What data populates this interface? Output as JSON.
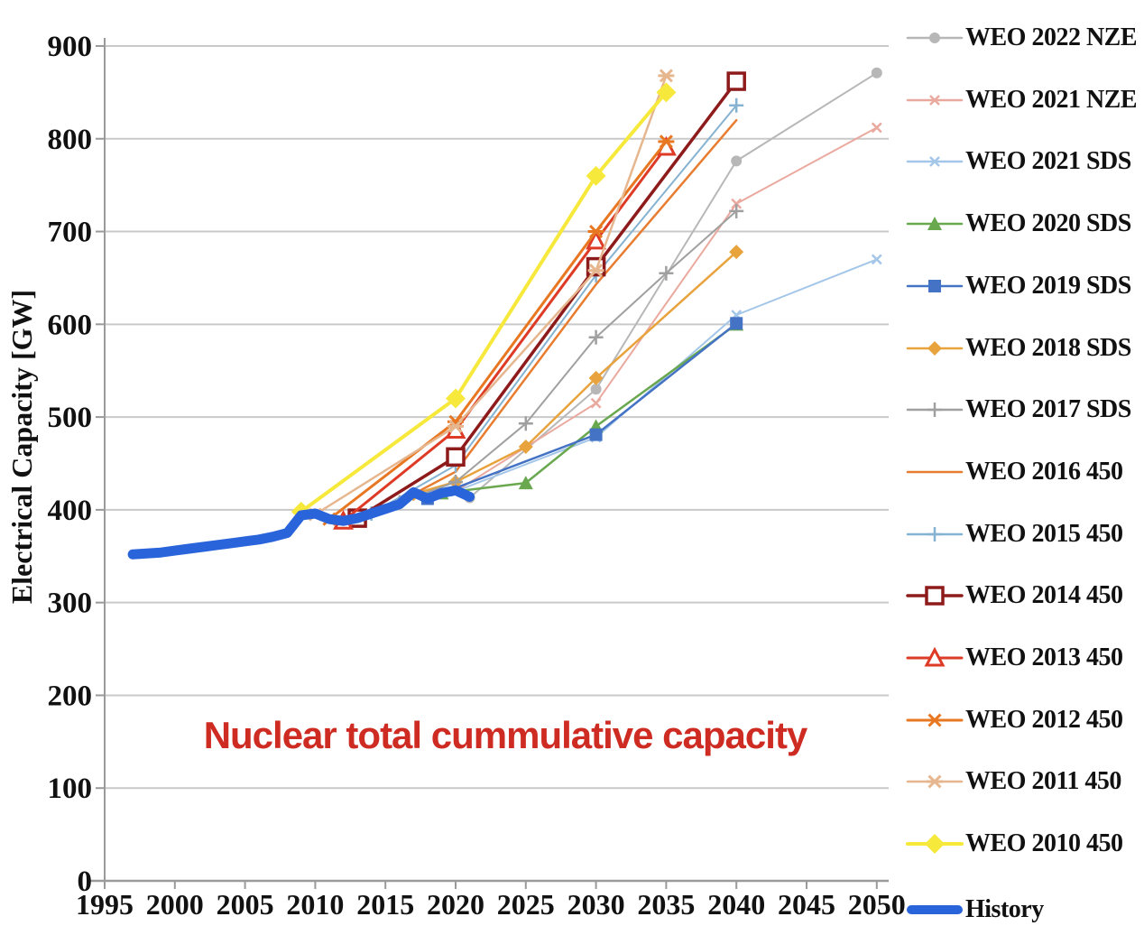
{
  "chart_data": {
    "type": "line",
    "title": "Nuclear total cummulative capacity",
    "title_color": "#ce2b23",
    "ylabel": "Electrical Capacity [GW]",
    "xlabel": "",
    "xlim": [
      1995,
      2052
    ],
    "ylim": [
      0,
      900
    ],
    "x_ticks": [
      1995,
      2000,
      2005,
      2010,
      2015,
      2020,
      2025,
      2030,
      2035,
      2040,
      2045,
      2050
    ],
    "y_ticks": [
      0,
      100,
      200,
      300,
      400,
      500,
      600,
      700,
      800,
      900
    ],
    "grid": "horizontal",
    "gridline_color": "#c9c9c9",
    "axis_color": "#9a9a9a",
    "legend_position": "right",
    "series": [
      {
        "name": "WEO 2022 NZE",
        "color": "#b7b7b7",
        "marker": "circle",
        "marker_size": 7,
        "line_width": 2,
        "points": [
          [
            2021,
            413
          ],
          [
            2030,
            530
          ],
          [
            2040,
            776
          ],
          [
            2050,
            871
          ]
        ]
      },
      {
        "name": "WEO 2021 NZE",
        "color": "#eaa99e",
        "marker": "x",
        "marker_size": 7,
        "line_width": 2,
        "points": [
          [
            2020,
            420
          ],
          [
            2030,
            515
          ],
          [
            2040,
            730
          ],
          [
            2050,
            812
          ]
        ]
      },
      {
        "name": "WEO 2021 SDS",
        "color": "#a4c6e8",
        "marker": "x",
        "marker_size": 7,
        "line_width": 2,
        "points": [
          [
            2020,
            420
          ],
          [
            2030,
            478
          ],
          [
            2040,
            610
          ],
          [
            2050,
            670
          ]
        ]
      },
      {
        "name": "WEO 2020 SDS",
        "color": "#69a84f",
        "marker": "triangle",
        "marker_size": 8,
        "line_width": 2.5,
        "points": [
          [
            2019,
            418
          ],
          [
            2025,
            429
          ],
          [
            2030,
            490
          ],
          [
            2040,
            600
          ]
        ]
      },
      {
        "name": "WEO 2019 SDS",
        "color": "#4472c4",
        "marker": "square",
        "marker_size": 8,
        "line_width": 2.5,
        "points": [
          [
            2018,
            412
          ],
          [
            2030,
            481
          ],
          [
            2040,
            601
          ]
        ]
      },
      {
        "name": "WEO 2018 SDS",
        "color": "#e8a33d",
        "marker": "diamond",
        "marker_size": 8,
        "line_width": 2.5,
        "points": [
          [
            2017,
            417
          ],
          [
            2020,
            430
          ],
          [
            2025,
            468
          ],
          [
            2030,
            542
          ],
          [
            2040,
            678
          ]
        ]
      },
      {
        "name": "WEO 2017 SDS",
        "color": "#a0a0a0",
        "marker": "plus",
        "marker_size": 8,
        "line_width": 2,
        "points": [
          [
            2016,
            408
          ],
          [
            2020,
            430
          ],
          [
            2025,
            493
          ],
          [
            2030,
            586
          ],
          [
            2035,
            655
          ],
          [
            2040,
            722
          ]
        ]
      },
      {
        "name": "WEO 2016 450",
        "color": "#e87d31",
        "marker": "none",
        "marker_size": 0,
        "line_width": 2.5,
        "points": [
          [
            2015,
            401
          ],
          [
            2020,
            441
          ],
          [
            2030,
            643
          ],
          [
            2040,
            820
          ]
        ]
      },
      {
        "name": "WEO 2015 450",
        "color": "#85b3d1",
        "marker": "plus",
        "marker_size": 8,
        "line_width": 2,
        "points": [
          [
            2014,
            396
          ],
          [
            2020,
            448
          ],
          [
            2030,
            653
          ],
          [
            2040,
            836
          ]
        ]
      },
      {
        "name": "WEO 2014 450",
        "color": "#8e1b1b",
        "marker": "osquare",
        "marker_size": 9,
        "line_width": 3.5,
        "points": [
          [
            2013,
            391
          ],
          [
            2020,
            457
          ],
          [
            2030,
            662
          ],
          [
            2040,
            862
          ]
        ]
      },
      {
        "name": "WEO 2013 450",
        "color": "#de3b26",
        "marker": "otriangle",
        "marker_size": 9,
        "line_width": 3,
        "points": [
          [
            2012,
            388
          ],
          [
            2020,
            486
          ],
          [
            2030,
            690
          ],
          [
            2035,
            791
          ]
        ]
      },
      {
        "name": "WEO 2012 450",
        "color": "#e87722",
        "marker": "asterisk",
        "marker_size": 9,
        "line_width": 3,
        "points": [
          [
            2011,
            390
          ],
          [
            2020,
            495
          ],
          [
            2030,
            700
          ],
          [
            2035,
            797
          ]
        ]
      },
      {
        "name": "WEO 2011 450",
        "color": "#e6b68e",
        "marker": "asterisk",
        "marker_size": 9,
        "line_width": 2.5,
        "points": [
          [
            2010,
            395
          ],
          [
            2020,
            490
          ],
          [
            2030,
            658
          ],
          [
            2035,
            868
          ]
        ]
      },
      {
        "name": "WEO 2010 450",
        "color": "#f6e93c",
        "marker": "diamond",
        "marker_size": 11,
        "line_width": 4,
        "points": [
          [
            2009,
            398
          ],
          [
            2020,
            520
          ],
          [
            2030,
            760
          ],
          [
            2035,
            850
          ]
        ]
      },
      {
        "name": "History",
        "color": "#2a64db",
        "marker": "none",
        "marker_size": 0,
        "line_width": 11,
        "points": [
          [
            1997,
            352
          ],
          [
            1998,
            353
          ],
          [
            1999,
            354
          ],
          [
            2000,
            356
          ],
          [
            2001,
            358
          ],
          [
            2002,
            360
          ],
          [
            2003,
            362
          ],
          [
            2004,
            364
          ],
          [
            2005,
            366
          ],
          [
            2006,
            368
          ],
          [
            2007,
            371
          ],
          [
            2008,
            375
          ],
          [
            2009,
            394
          ],
          [
            2010,
            396
          ],
          [
            2011,
            390
          ],
          [
            2012,
            388
          ],
          [
            2013,
            391
          ],
          [
            2014,
            396
          ],
          [
            2015,
            401
          ],
          [
            2016,
            406
          ],
          [
            2017,
            419
          ],
          [
            2018,
            412
          ],
          [
            2019,
            418
          ],
          [
            2020,
            421
          ],
          [
            2021,
            414
          ]
        ]
      }
    ]
  }
}
